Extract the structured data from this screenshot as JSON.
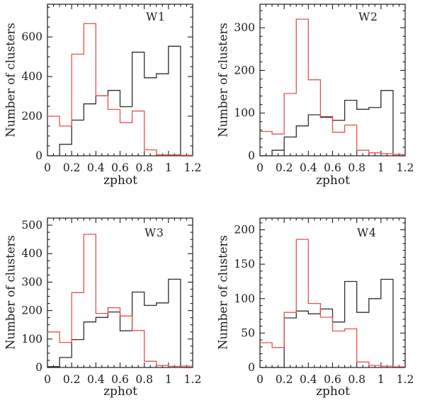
{
  "figure": {
    "background": "#ffffff",
    "axis_color": "#1c1c1c",
    "black_series_color": "#2e2e2e",
    "red_series_color": "#e8504e"
  },
  "chart_data": [
    {
      "type": "histogram-step",
      "panel_label": "W1",
      "xlabel": "zphot",
      "ylabel": "Number of clusters",
      "xlim": [
        0,
        1.2
      ],
      "ylim": [
        0,
        765
      ],
      "bin_edges": [
        0,
        0.1,
        0.2,
        0.3,
        0.4,
        0.5,
        0.6,
        0.7,
        0.8,
        0.9,
        1.0,
        1.1,
        1.2
      ],
      "xticks": [
        0,
        0.2,
        0.4,
        0.6,
        0.8,
        1,
        1.2
      ],
      "xtick_labels": [
        "0",
        "0.2",
        "0.4",
        "0.6",
        "0.8",
        "1",
        "1.2"
      ],
      "x_minor_step": 0.05,
      "yticks": [
        0,
        200,
        400,
        600
      ],
      "ytick_labels": [
        "0",
        "200",
        "400",
        "600"
      ],
      "y_minor_step": 50,
      "grid": "off",
      "legend": "none",
      "series": [
        {
          "name": "black-histogram",
          "color": "#2e2e2e",
          "values": [
            0,
            58,
            180,
            262,
            303,
            330,
            248,
            523,
            394,
            414,
            553,
            0
          ]
        },
        {
          "name": "red-histogram",
          "color": "#e8504e",
          "values": [
            200,
            150,
            513,
            667,
            303,
            234,
            167,
            226,
            30,
            5,
            5,
            3
          ]
        }
      ]
    },
    {
      "type": "histogram-step",
      "panel_label": "W2",
      "xlabel": "zphot",
      "ylabel": "Number of clusters",
      "xlim": [
        0,
        1.2
      ],
      "ylim": [
        0,
        355
      ],
      "bin_edges": [
        0,
        0.1,
        0.2,
        0.3,
        0.4,
        0.5,
        0.6,
        0.7,
        0.8,
        0.9,
        1.0,
        1.1,
        1.2
      ],
      "xticks": [
        0,
        0.2,
        0.4,
        0.6,
        0.8,
        1,
        1.2
      ],
      "xtick_labels": [
        "0",
        "0.2",
        "0.4",
        "0.6",
        "0.8",
        "1",
        "1.2"
      ],
      "x_minor_step": 0.05,
      "yticks": [
        0,
        100,
        200,
        300
      ],
      "ytick_labels": [
        "0",
        "100",
        "200",
        "300"
      ],
      "y_minor_step": 20,
      "grid": "off",
      "legend": "none",
      "series": [
        {
          "name": "black-histogram",
          "color": "#2e2e2e",
          "values": [
            0,
            13,
            44,
            70,
            96,
            90,
            83,
            130,
            109,
            113,
            153,
            0
          ]
        },
        {
          "name": "red-histogram",
          "color": "#e8504e",
          "values": [
            57,
            51,
            146,
            320,
            178,
            92,
            55,
            72,
            13,
            7,
            5,
            3
          ]
        }
      ]
    },
    {
      "type": "histogram-step",
      "panel_label": "W3",
      "xlabel": "zphot",
      "ylabel": "Number of clusters",
      "xlim": [
        0,
        1.2
      ],
      "ylim": [
        0,
        525
      ],
      "bin_edges": [
        0,
        0.1,
        0.2,
        0.3,
        0.4,
        0.5,
        0.6,
        0.7,
        0.8,
        0.9,
        1.0,
        1.1,
        1.2
      ],
      "xticks": [
        0,
        0.2,
        0.4,
        0.6,
        0.8,
        1,
        1.2
      ],
      "xtick_labels": [
        "0",
        "0.2",
        "0.4",
        "0.6",
        "0.8",
        "1",
        "1.2"
      ],
      "x_minor_step": 0.05,
      "yticks": [
        0,
        100,
        200,
        300,
        400,
        500
      ],
      "ytick_labels": [
        "0",
        "100",
        "200",
        "300",
        "400",
        "500"
      ],
      "y_minor_step": 25,
      "grid": "off",
      "legend": "none",
      "series": [
        {
          "name": "black-histogram",
          "color": "#2e2e2e",
          "values": [
            3,
            35,
            98,
            160,
            176,
            195,
            129,
            265,
            218,
            227,
            310,
            0
          ]
        },
        {
          "name": "red-histogram",
          "color": "#e8504e",
          "values": [
            125,
            88,
            263,
            468,
            190,
            210,
            181,
            130,
            22,
            7,
            4,
            5
          ]
        }
      ]
    },
    {
      "type": "histogram-step",
      "panel_label": "W4",
      "xlabel": "zphot",
      "ylabel": "Number of clusters",
      "xlim": [
        0,
        1.2
      ],
      "ylim": [
        0,
        217
      ],
      "bin_edges": [
        0,
        0.1,
        0.2,
        0.3,
        0.4,
        0.5,
        0.6,
        0.7,
        0.8,
        0.9,
        1.0,
        1.1,
        1.2
      ],
      "xticks": [
        0,
        0.2,
        0.4,
        0.6,
        0.8,
        1,
        1.2
      ],
      "xtick_labels": [
        "0",
        "0.2",
        "0.4",
        "0.6",
        "0.8",
        "1",
        "1.2"
      ],
      "x_minor_step": 0.05,
      "yticks": [
        0,
        50,
        100,
        150,
        200
      ],
      "ytick_labels": [
        "0",
        "50",
        "100",
        "150",
        "200"
      ],
      "y_minor_step": 10,
      "grid": "off",
      "legend": "none",
      "series": [
        {
          "name": "black-histogram",
          "color": "#2e2e2e",
          "values": [
            0,
            0,
            72,
            82,
            78,
            85,
            66,
            125,
            80,
            100,
            128,
            0
          ]
        },
        {
          "name": "red-histogram",
          "color": "#e8504e",
          "values": [
            36,
            29,
            80,
            186,
            93,
            73,
            53,
            56,
            8,
            3,
            2,
            1
          ]
        }
      ]
    }
  ]
}
